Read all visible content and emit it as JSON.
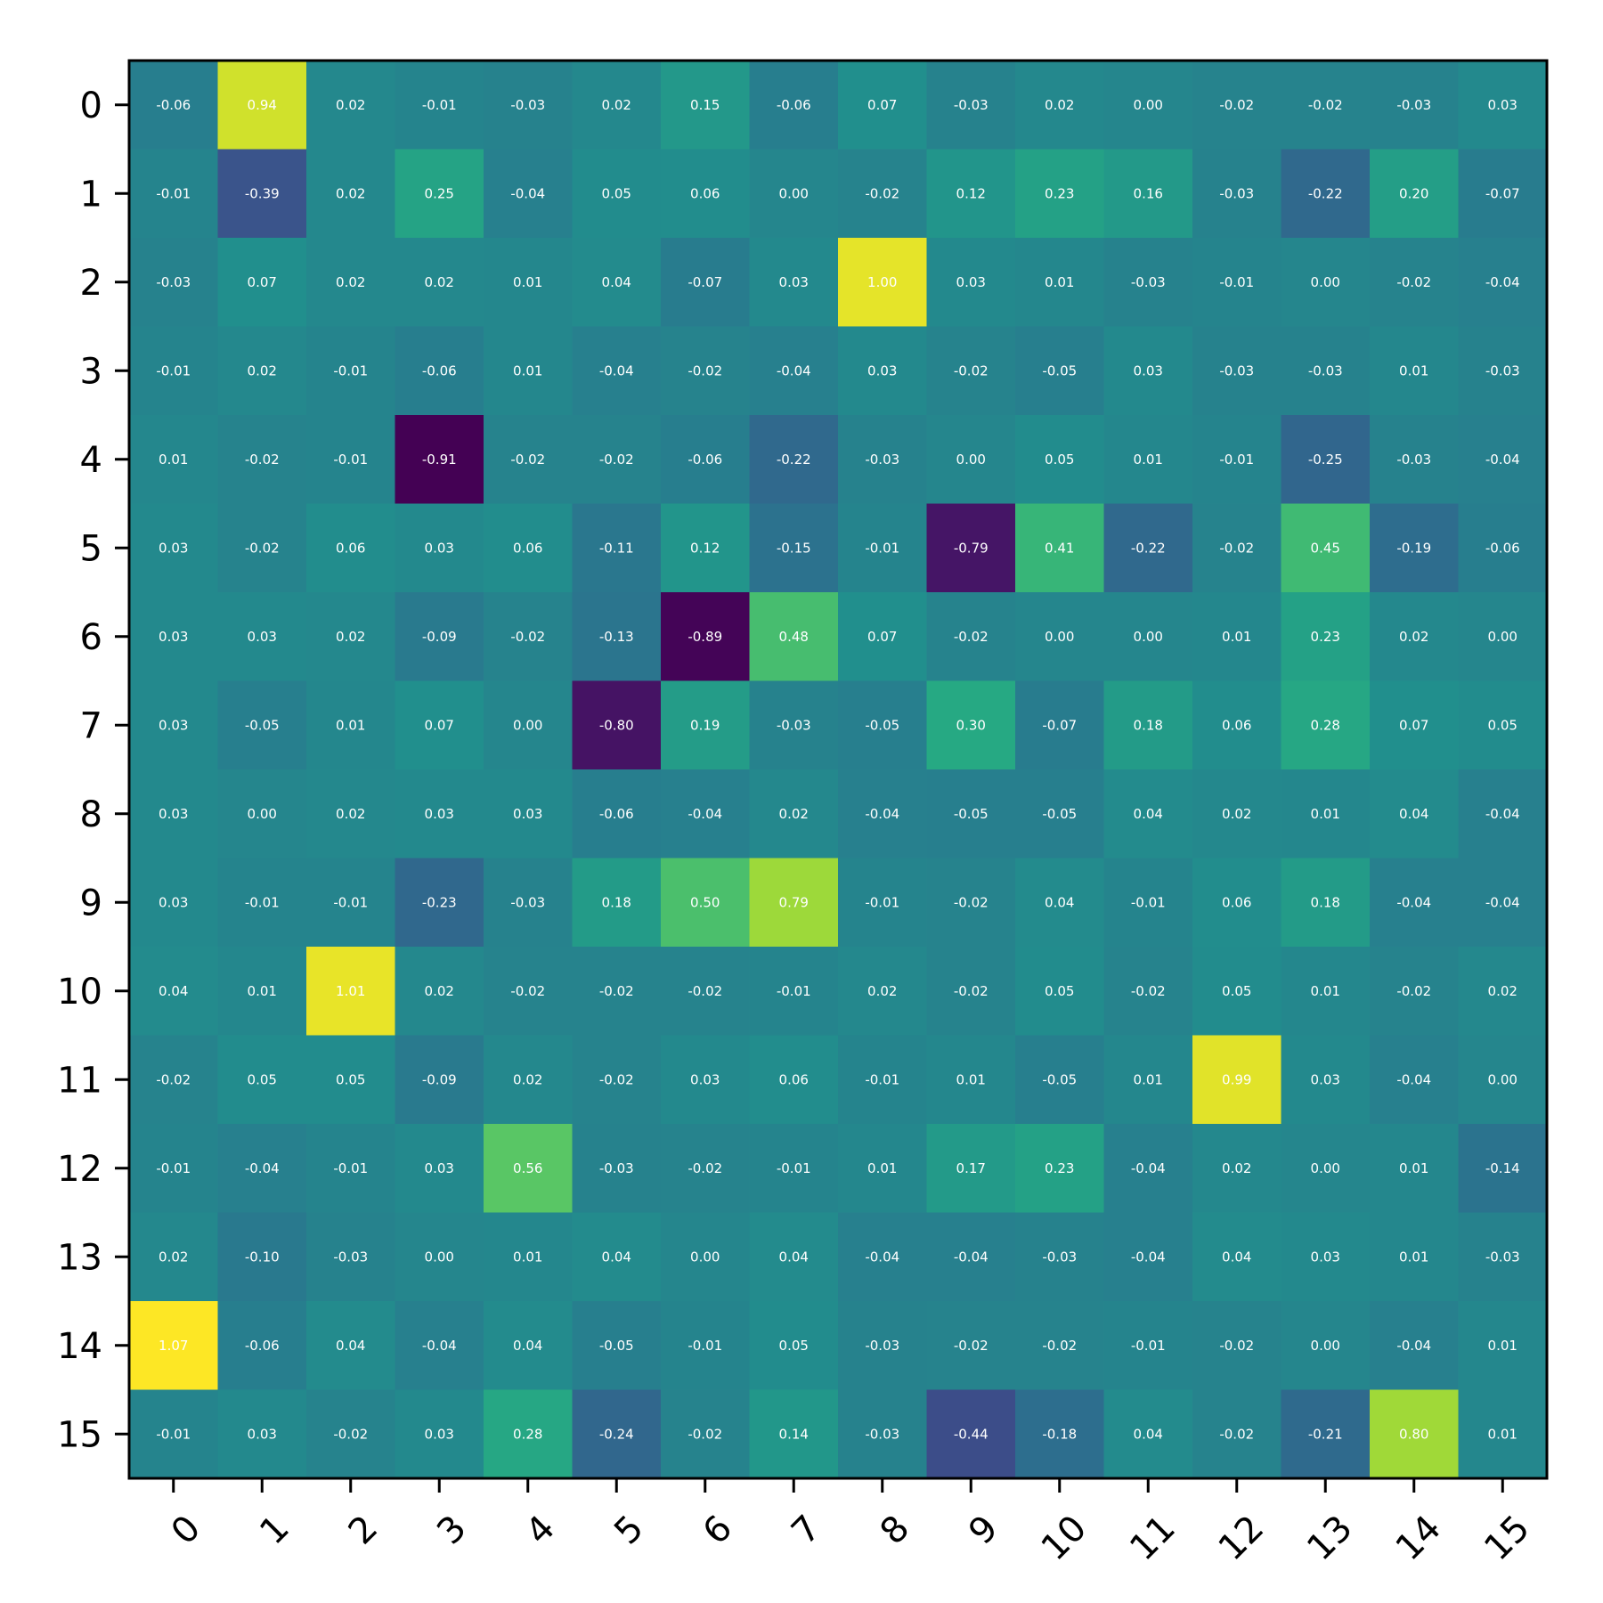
{
  "chart_data": {
    "type": "heatmap",
    "title": "",
    "xlabel": "",
    "ylabel": "",
    "colormap": "viridis",
    "value_range": [
      -0.91,
      1.07
    ],
    "x_categories": [
      "0",
      "1",
      "2",
      "3",
      "4",
      "5",
      "6",
      "7",
      "8",
      "9",
      "10",
      "11",
      "12",
      "13",
      "14",
      "15"
    ],
    "y_categories": [
      "0",
      "1",
      "2",
      "3",
      "4",
      "5",
      "6",
      "7",
      "8",
      "9",
      "10",
      "11",
      "12",
      "13",
      "14",
      "15"
    ],
    "values": [
      [
        -0.06,
        0.94,
        0.02,
        -0.01,
        -0.03,
        0.02,
        0.15,
        -0.06,
        0.07,
        -0.03,
        0.02,
        -0.0,
        -0.02,
        -0.02,
        -0.03,
        0.03
      ],
      [
        -0.01,
        -0.39,
        0.02,
        0.25,
        -0.04,
        0.05,
        0.06,
        0.0,
        -0.02,
        0.12,
        0.23,
        0.16,
        -0.03,
        -0.22,
        0.2,
        -0.07
      ],
      [
        -0.03,
        0.07,
        0.02,
        0.02,
        0.01,
        0.04,
        -0.07,
        0.03,
        1.0,
        0.03,
        0.01,
        -0.03,
        -0.01,
        0.0,
        -0.02,
        -0.04
      ],
      [
        -0.01,
        0.02,
        -0.01,
        -0.06,
        0.01,
        -0.04,
        -0.02,
        -0.04,
        0.03,
        -0.02,
        -0.05,
        0.03,
        -0.03,
        -0.03,
        0.01,
        -0.03
      ],
      [
        0.01,
        -0.02,
        -0.01,
        -0.91,
        -0.02,
        -0.02,
        -0.06,
        -0.22,
        -0.03,
        0.0,
        0.05,
        0.01,
        -0.01,
        -0.25,
        -0.03,
        -0.04
      ],
      [
        0.03,
        -0.02,
        0.06,
        0.03,
        0.06,
        -0.11,
        0.12,
        -0.15,
        -0.01,
        -0.79,
        0.41,
        -0.22,
        -0.02,
        0.45,
        -0.19,
        -0.06
      ],
      [
        0.03,
        0.03,
        0.02,
        -0.09,
        -0.02,
        -0.13,
        -0.89,
        0.48,
        0.07,
        -0.02,
        0.0,
        -0.0,
        0.01,
        0.23,
        0.02,
        0.0
      ],
      [
        0.03,
        -0.05,
        0.01,
        0.07,
        0.0,
        -0.8,
        0.19,
        -0.03,
        -0.05,
        0.3,
        -0.07,
        0.18,
        0.06,
        0.28,
        0.07,
        0.05
      ],
      [
        0.03,
        0.0,
        0.02,
        0.03,
        0.03,
        -0.06,
        -0.04,
        0.02,
        -0.04,
        -0.05,
        -0.05,
        0.04,
        0.02,
        0.01,
        0.04,
        -0.04
      ],
      [
        0.03,
        -0.01,
        -0.01,
        -0.23,
        -0.03,
        0.18,
        0.5,
        0.79,
        -0.01,
        -0.02,
        0.04,
        -0.01,
        0.06,
        0.18,
        -0.04,
        -0.04
      ],
      [
        0.04,
        0.01,
        1.01,
        0.02,
        -0.02,
        -0.02,
        -0.02,
        -0.01,
        0.02,
        -0.02,
        0.05,
        -0.02,
        0.05,
        0.01,
        -0.02,
        0.02
      ],
      [
        -0.02,
        0.05,
        0.05,
        -0.09,
        0.02,
        -0.02,
        0.03,
        0.06,
        -0.01,
        0.01,
        -0.05,
        0.01,
        0.99,
        0.03,
        -0.04,
        -0.0
      ],
      [
        -0.01,
        -0.04,
        -0.01,
        0.03,
        0.56,
        -0.03,
        -0.02,
        -0.01,
        0.01,
        0.17,
        0.23,
        -0.04,
        0.02,
        -0.0,
        0.01,
        -0.14
      ],
      [
        0.02,
        -0.1,
        -0.03,
        -0.0,
        0.01,
        0.04,
        0.0,
        0.04,
        -0.04,
        -0.04,
        -0.03,
        -0.04,
        0.04,
        0.03,
        0.01,
        -0.03
      ],
      [
        1.07,
        -0.06,
        0.04,
        -0.04,
        0.04,
        -0.05,
        -0.01,
        0.05,
        -0.03,
        -0.02,
        -0.02,
        -0.01,
        -0.02,
        0.0,
        -0.04,
        0.01
      ],
      [
        -0.01,
        0.03,
        -0.02,
        0.03,
        0.28,
        -0.24,
        -0.02,
        0.14,
        -0.03,
        -0.44,
        -0.18,
        0.04,
        -0.02,
        -0.21,
        0.8,
        0.01
      ]
    ],
    "value_format": "2 decimals",
    "grid": false,
    "legend": "none"
  }
}
